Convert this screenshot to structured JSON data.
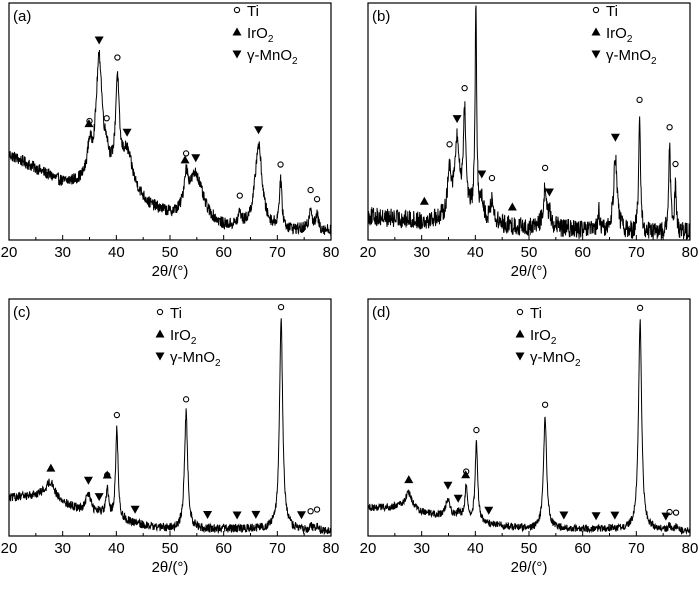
{
  "chart_data": [
    {
      "panel": "(a)",
      "type": "line",
      "xlabel": "2θ/(°)",
      "xlim": [
        20,
        80
      ],
      "xticks": [
        20,
        30,
        40,
        50,
        60,
        70,
        80
      ],
      "legend": [
        {
          "marker": "circle",
          "label": "Ti"
        },
        {
          "marker": "triangle-up",
          "label": "IrO2"
        },
        {
          "marker": "triangle-down",
          "label": "γ-MnO2"
        }
      ],
      "baseline": [
        [
          20,
          0.36
        ],
        [
          25,
          0.3
        ],
        [
          30,
          0.24
        ],
        [
          34,
          0.24
        ],
        [
          38,
          0.26
        ],
        [
          42,
          0.22
        ],
        [
          46,
          0.14
        ],
        [
          50,
          0.1
        ],
        [
          53,
          0.09
        ],
        [
          56,
          0.09
        ],
        [
          60,
          0.05
        ],
        [
          65,
          0.05
        ],
        [
          70,
          0.04
        ],
        [
          75,
          0.04
        ],
        [
          80,
          0.04
        ]
      ],
      "noise": 0.025,
      "peaks": [
        {
          "x": 35.0,
          "h": 0.12,
          "w": 0.5,
          "marker": "circle"
        },
        {
          "x": 36.8,
          "h": 0.5,
          "w": 0.7,
          "marker": "triangle-down"
        },
        {
          "x": 38.2,
          "h": 0.06,
          "w": 0.4,
          "marker": "circle"
        },
        {
          "x": 40.2,
          "h": 0.4,
          "w": 0.4,
          "marker": "circle"
        },
        {
          "x": 42.0,
          "h": 0.14,
          "w": 1.2,
          "marker": "triangle-down"
        },
        {
          "x": 53.0,
          "h": 0.14,
          "w": 0.5,
          "marker": "circle"
        },
        {
          "x": 54.8,
          "h": 0.18,
          "w": 1.4,
          "marker": "triangle-down"
        },
        {
          "x": 63.0,
          "h": 0.05,
          "w": 0.3,
          "marker": "circle"
        },
        {
          "x": 66.5,
          "h": 0.35,
          "w": 0.8,
          "marker": "triangle-down"
        },
        {
          "x": 70.6,
          "h": 0.2,
          "w": 0.3,
          "marker": "circle"
        },
        {
          "x": 76.2,
          "h": 0.1,
          "w": 0.3,
          "marker": "circle"
        },
        {
          "x": 77.4,
          "h": 0.06,
          "w": 0.3,
          "marker": "circle"
        }
      ],
      "extra_markers": [
        {
          "x": 34.9,
          "marker": "triangle-up"
        },
        {
          "x": 52.8,
          "marker": "triangle-up"
        }
      ]
    },
    {
      "panel": "(b)",
      "type": "line",
      "xlabel": "2θ/(°)",
      "xlim": [
        20,
        80
      ],
      "xticks": [
        20,
        30,
        40,
        50,
        60,
        70,
        80
      ],
      "legend": [
        {
          "marker": "circle",
          "label": "Ti"
        },
        {
          "marker": "triangle-up",
          "label": "IrO2"
        },
        {
          "marker": "triangle-down",
          "label": "γ-MnO2"
        }
      ],
      "baseline": [
        [
          20,
          0.1
        ],
        [
          25,
          0.09
        ],
        [
          30,
          0.08
        ],
        [
          34,
          0.09
        ],
        [
          36,
          0.12
        ],
        [
          38,
          0.12
        ],
        [
          40,
          0.1
        ],
        [
          42,
          0.08
        ],
        [
          46,
          0.06
        ],
        [
          50,
          0.05
        ],
        [
          53,
          0.07
        ],
        [
          56,
          0.05
        ],
        [
          60,
          0.04
        ],
        [
          70,
          0.03
        ],
        [
          80,
          0.03
        ]
      ],
      "noise": 0.04,
      "peaks": [
        {
          "x": 35.2,
          "h": 0.18,
          "w": 0.4,
          "marker": "circle"
        },
        {
          "x": 36.6,
          "h": 0.28,
          "w": 0.5,
          "marker": "triangle-down"
        },
        {
          "x": 38.0,
          "h": 0.4,
          "w": 0.3,
          "marker": "circle"
        },
        {
          "x": 40.1,
          "h": 0.86,
          "w": 0.18,
          "marker": "circle"
        },
        {
          "x": 41.2,
          "h": 0.08,
          "w": 0.3,
          "marker": "triangle-down"
        },
        {
          "x": 43.1,
          "h": 0.1,
          "w": 0.3,
          "marker": "circle"
        },
        {
          "x": 53.0,
          "h": 0.15,
          "w": 0.3,
          "marker": "circle"
        },
        {
          "x": 53.8,
          "h": 0.04,
          "w": 0.3,
          "marker": "triangle-down"
        },
        {
          "x": 63.0,
          "h": 0.08,
          "w": 0.2,
          "marker": ""
        },
        {
          "x": 66.1,
          "h": 0.32,
          "w": 0.4,
          "marker": "triangle-down"
        },
        {
          "x": 70.6,
          "h": 0.48,
          "w": 0.2,
          "marker": "circle"
        },
        {
          "x": 76.2,
          "h": 0.36,
          "w": 0.2,
          "marker": "circle"
        },
        {
          "x": 77.3,
          "h": 0.2,
          "w": 0.2,
          "marker": "circle"
        }
      ],
      "extra_markers": [
        {
          "x": 30.5,
          "marker": "triangle-up"
        },
        {
          "x": 46.9,
          "marker": "triangle-up"
        }
      ]
    },
    {
      "panel": "(c)",
      "type": "line",
      "xlabel": "2θ/(°)",
      "xlim": [
        20,
        80
      ],
      "xticks": [
        20,
        30,
        40,
        50,
        60,
        70,
        80
      ],
      "legend": [
        {
          "marker": "circle",
          "label": "Ti"
        },
        {
          "marker": "triangle-up",
          "label": "IrO2"
        },
        {
          "marker": "triangle-down",
          "label": "γ-MnO2"
        }
      ],
      "baseline": [
        [
          20,
          0.16
        ],
        [
          24,
          0.17
        ],
        [
          27,
          0.18
        ],
        [
          30,
          0.14
        ],
        [
          34,
          0.1
        ],
        [
          38,
          0.08
        ],
        [
          42,
          0.06
        ],
        [
          46,
          0.04
        ],
        [
          50,
          0.03
        ],
        [
          60,
          0.03
        ],
        [
          70,
          0.03
        ],
        [
          80,
          0.02
        ]
      ],
      "noise": 0.018,
      "peaks": [
        {
          "x": 27.8,
          "h": 0.06,
          "w": 0.8,
          "marker": ""
        },
        {
          "x": 34.8,
          "h": 0.08,
          "w": 0.6,
          "marker": "triangle-down"
        },
        {
          "x": 36.8,
          "h": 0.01,
          "w": 0.4,
          "marker": "triangle-down"
        },
        {
          "x": 38.3,
          "h": 0.11,
          "w": 0.3,
          "marker": "circle"
        },
        {
          "x": 40.1,
          "h": 0.38,
          "w": 0.28,
          "marker": "circle"
        },
        {
          "x": 53.0,
          "h": 0.49,
          "w": 0.35,
          "marker": "circle"
        },
        {
          "x": 70.7,
          "h": 0.88,
          "w": 0.35,
          "marker": "circle"
        },
        {
          "x": 76.2,
          "h": 0.02,
          "w": 0.2,
          "marker": "circle"
        },
        {
          "x": 77.4,
          "h": 0.03,
          "w": 0.2,
          "marker": "circle"
        }
      ],
      "extra_markers": [
        {
          "x": 27.8,
          "marker": "triangle-up"
        },
        {
          "x": 38.3,
          "marker": "triangle-up"
        },
        {
          "x": 43.5,
          "marker": "triangle-down"
        },
        {
          "x": 57.0,
          "marker": "triangle-down"
        },
        {
          "x": 62.5,
          "marker": "triangle-down"
        },
        {
          "x": 66.0,
          "marker": "triangle-down"
        },
        {
          "x": 74.5,
          "marker": "triangle-down"
        }
      ]
    },
    {
      "panel": "(d)",
      "type": "line",
      "xlabel": "2θ/(°)",
      "xlim": [
        20,
        80
      ],
      "xticks": [
        20,
        30,
        40,
        50,
        60,
        70,
        80
      ],
      "legend": [
        {
          "marker": "circle",
          "label": "Ti"
        },
        {
          "marker": "triangle-up",
          "label": "IrO2"
        },
        {
          "marker": "triangle-down",
          "label": "γ-MnO2"
        }
      ],
      "baseline": [
        [
          20,
          0.12
        ],
        [
          24,
          0.12
        ],
        [
          27,
          0.13
        ],
        [
          30,
          0.1
        ],
        [
          34,
          0.08
        ],
        [
          38,
          0.07
        ],
        [
          42,
          0.05
        ],
        [
          46,
          0.04
        ],
        [
          50,
          0.03
        ],
        [
          60,
          0.03
        ],
        [
          70,
          0.03
        ],
        [
          80,
          0.02
        ]
      ],
      "noise": 0.015,
      "peaks": [
        {
          "x": 27.6,
          "h": 0.06,
          "w": 0.6,
          "marker": ""
        },
        {
          "x": 34.9,
          "h": 0.08,
          "w": 0.5,
          "marker": "triangle-down"
        },
        {
          "x": 36.8,
          "h": 0.02,
          "w": 0.4,
          "marker": "triangle-down"
        },
        {
          "x": 38.3,
          "h": 0.14,
          "w": 0.3,
          "marker": "circle"
        },
        {
          "x": 40.2,
          "h": 0.33,
          "w": 0.28,
          "marker": "circle"
        },
        {
          "x": 53.0,
          "h": 0.47,
          "w": 0.35,
          "marker": "circle"
        },
        {
          "x": 70.7,
          "h": 0.88,
          "w": 0.35,
          "marker": "circle"
        },
        {
          "x": 76.2,
          "h": 0.02,
          "w": 0.2,
          "marker": "circle"
        },
        {
          "x": 77.4,
          "h": 0.02,
          "w": 0.2,
          "marker": "circle"
        }
      ],
      "extra_markers": [
        {
          "x": 27.6,
          "marker": "triangle-up"
        },
        {
          "x": 38.2,
          "marker": "triangle-up"
        },
        {
          "x": 42.5,
          "marker": "triangle-down"
        },
        {
          "x": 56.5,
          "marker": "triangle-down"
        },
        {
          "x": 62.5,
          "marker": "triangle-down"
        },
        {
          "x": 66.0,
          "marker": "triangle-down"
        },
        {
          "x": 75.5,
          "marker": "triangle-down"
        }
      ]
    }
  ]
}
